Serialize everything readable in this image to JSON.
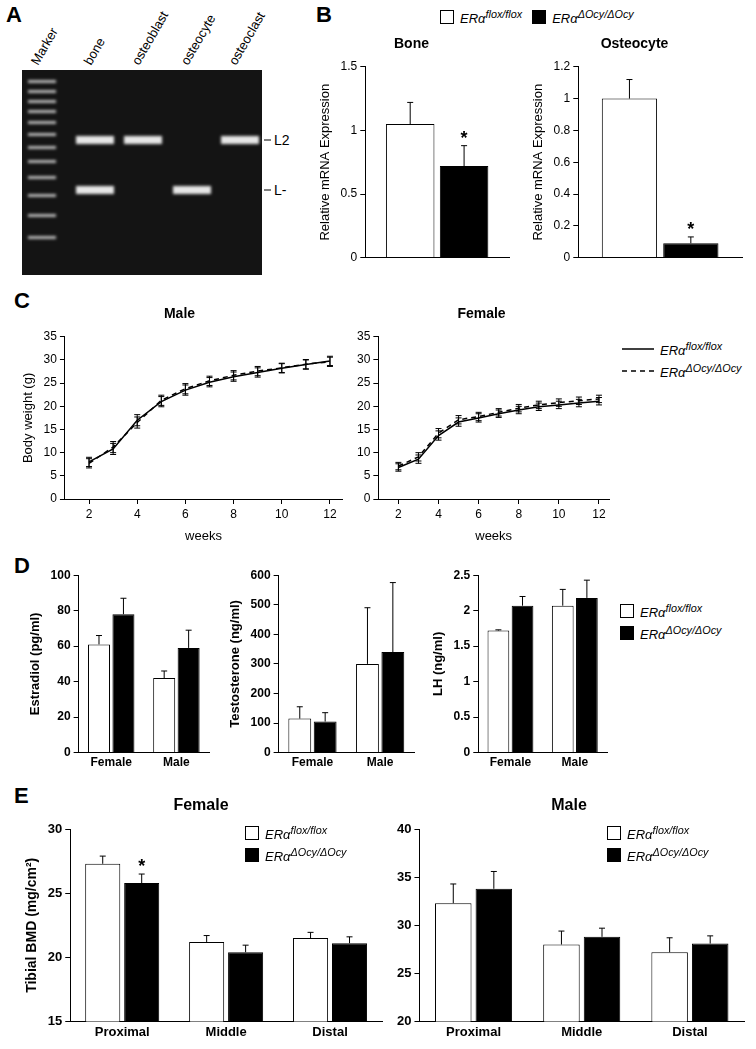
{
  "gel": {
    "panel": "A",
    "lanes": [
      {
        "label": "Marker",
        "ladder": true
      },
      {
        "label": "bone",
        "bands": [
          "L2",
          "L-"
        ]
      },
      {
        "label": "osteoblast",
        "bands": [
          "L2"
        ]
      },
      {
        "label": "osteocyte",
        "bands": [
          "L-"
        ]
      },
      {
        "label": "osteoclast",
        "bands": [
          "L2"
        ]
      }
    ],
    "band_labels": [
      "L2",
      "L-"
    ]
  },
  "chart_data": [
    {
      "panel": "B",
      "type": "bar",
      "title": "Bone",
      "y_label": "Relative mRNA Expression",
      "categories": [
        null
      ],
      "series": [
        {
          "name": "ERαflox/flox",
          "color": "#ffffff",
          "values": [
            1.05
          ],
          "errors": [
            0.17
          ]
        },
        {
          "name": "ERαΔOcy/ΔOcy",
          "color": "#000000",
          "values": [
            0.72
          ],
          "errors": [
            0.16
          ],
          "annotations": [
            "*"
          ]
        }
      ],
      "ylim": [
        0,
        1.5
      ],
      "yticks": [
        0,
        0.5,
        1,
        1.5
      ],
      "grid": false,
      "legend": "top"
    },
    {
      "panel": "B",
      "type": "bar",
      "title": "Osteocyte",
      "y_label": "Relative mRNA Expression",
      "categories": [
        null
      ],
      "series": [
        {
          "name": "ERαflox/flox",
          "color": "#ffffff",
          "values": [
            1.0
          ],
          "errors": [
            0.12
          ]
        },
        {
          "name": "ERαΔOcy/ΔOcy",
          "color": "#000000",
          "values": [
            0.09
          ],
          "errors": [
            0.04
          ],
          "annotations": [
            "*"
          ]
        }
      ],
      "ylim": [
        0,
        1.2
      ],
      "yticks": [
        0,
        0.2,
        0.4,
        0.6,
        0.8,
        1,
        1.2
      ],
      "grid": false
    },
    {
      "panel": "C",
      "type": "line",
      "title": "Male",
      "x_label": "weeks",
      "y_label": "Body weight (g)",
      "x": [
        2,
        3,
        4,
        5,
        6,
        7,
        8,
        9,
        10,
        11,
        12
      ],
      "series": [
        {
          "name": "ERαflox/flox",
          "color": "#000000",
          "line_style": "solid",
          "marker": "none",
          "values": [
            8,
            10.8,
            17,
            21,
            23.5,
            25.2,
            26.4,
            27.3,
            28.2,
            29,
            29.8
          ],
          "errors": [
            1,
            1.2,
            1.2,
            1.1,
            1.1,
            1,
            1,
            1,
            1,
            1,
            1
          ]
        },
        {
          "name": "ERαΔOcy/ΔOcy",
          "color": "#000000",
          "line_style": "dashed",
          "marker": "none",
          "values": [
            7.7,
            11.2,
            16.5,
            21.3,
            23.8,
            25.5,
            26.7,
            27.6,
            28.3,
            29.1,
            29.6
          ],
          "errors": [
            1,
            1.2,
            1.2,
            1.1,
            1.1,
            1,
            1,
            1,
            1,
            1,
            1
          ]
        }
      ],
      "xlim": [
        1,
        12.5
      ],
      "xticks": [
        2,
        4,
        6,
        8,
        10,
        12
      ],
      "ylim": [
        0,
        35
      ],
      "yticks": [
        0,
        5,
        10,
        15,
        20,
        25,
        30,
        35
      ],
      "grid": false
    },
    {
      "panel": "C",
      "type": "line",
      "title": "Female",
      "x_label": "weeks",
      "x": [
        2,
        3,
        4,
        5,
        6,
        7,
        8,
        9,
        10,
        11,
        12
      ],
      "series": [
        {
          "name": "ERαflox/flox",
          "color": "#000000",
          "line_style": "solid",
          "marker": "none",
          "values": [
            6.8,
            8.6,
            13.7,
            16.6,
            17.5,
            18.4,
            19.2,
            19.9,
            20.3,
            20.7,
            21.1
          ],
          "errors": [
            0.8,
            0.9,
            1,
            0.9,
            0.9,
            0.8,
            0.8,
            0.8,
            0.8,
            0.8,
            0.8
          ]
        },
        {
          "name": "ERαΔOcy/ΔOcy",
          "color": "#000000",
          "line_style": "dashed",
          "marker": "none",
          "values": [
            7.1,
            9.1,
            14.2,
            17.1,
            17.8,
            18.7,
            19.6,
            20.3,
            20.8,
            21.2,
            21.6
          ],
          "errors": [
            0.8,
            0.9,
            1,
            0.9,
            0.9,
            0.8,
            0.8,
            0.8,
            0.8,
            0.8,
            0.8
          ]
        }
      ],
      "xlim": [
        1,
        12.5
      ],
      "xticks": [
        2,
        4,
        6,
        8,
        10,
        12
      ],
      "ylim": [
        0,
        35
      ],
      "yticks": [
        0,
        5,
        10,
        15,
        20,
        25,
        30,
        35
      ],
      "grid": false,
      "legend": "right"
    },
    {
      "panel": "D",
      "type": "bar",
      "y_label": "Estradiol (pg/ml)",
      "categories": [
        "Female",
        "Male"
      ],
      "series": [
        {
          "name": "ERαflox/flox",
          "color": "#ffffff",
          "values": [
            61,
            42
          ],
          "errors": [
            5,
            4
          ]
        },
        {
          "name": "ERαΔOcy/ΔOcy",
          "color": "#000000",
          "values": [
            78,
            59
          ],
          "errors": [
            9,
            10
          ]
        }
      ],
      "ylim": [
        0,
        100
      ],
      "yticks": [
        0,
        20,
        40,
        60,
        80,
        100
      ],
      "grid": false
    },
    {
      "panel": "D",
      "type": "bar",
      "y_label": "Testosterone (ng/ml)",
      "categories": [
        "Female",
        "Male"
      ],
      "series": [
        {
          "name": "ERαflox/flox",
          "color": "#ffffff",
          "values": [
            115,
            300
          ],
          "errors": [
            40,
            190
          ]
        },
        {
          "name": "ERαΔOcy/ΔOcy",
          "color": "#000000",
          "values": [
            105,
            340
          ],
          "errors": [
            30,
            235
          ]
        }
      ],
      "ylim": [
        0,
        600
      ],
      "yticks": [
        0,
        100,
        200,
        300,
        400,
        500,
        600
      ],
      "grid": false
    },
    {
      "panel": "D",
      "type": "bar",
      "y_label": "LH (ng/ml)",
      "categories": [
        "Female",
        "Male"
      ],
      "series": [
        {
          "name": "ERαflox/flox",
          "color": "#ffffff",
          "values": [
            1.72,
            2.07
          ],
          "errors": [
            0.01,
            0.23
          ]
        },
        {
          "name": "ERαΔOcy/ΔOcy",
          "color": "#000000",
          "values": [
            2.07,
            2.18
          ],
          "errors": [
            0.13,
            0.25
          ]
        }
      ],
      "ylim": [
        0,
        2.5
      ],
      "yticks": [
        0,
        0.5,
        1,
        1.5,
        2,
        2.5
      ],
      "grid": false,
      "legend": "right"
    },
    {
      "panel": "E",
      "type": "bar",
      "title": "Female",
      "y_label": "Tibial BMD (mg/cm²)",
      "categories": [
        "Proximal",
        "Middle",
        "Distal"
      ],
      "series": [
        {
          "name": "ERαflox/flox",
          "color": "#ffffff",
          "values": [
            27.3,
            21.2,
            21.5
          ],
          "errors": [
            0.6,
            0.5,
            0.45
          ]
        },
        {
          "name": "ERαΔOcy/ΔOcy",
          "color": "#000000",
          "values": [
            25.8,
            20.4,
            21.1
          ],
          "errors": [
            0.7,
            0.55,
            0.5
          ],
          "annotations": [
            "*",
            null,
            null
          ]
        }
      ],
      "ylim": [
        15,
        30
      ],
      "yticks": [
        15,
        20,
        25,
        30
      ],
      "grid": false,
      "legend": "upper right"
    },
    {
      "panel": "E",
      "type": "bar",
      "title": "Male",
      "categories": [
        "Proximal",
        "Middle",
        "Distal"
      ],
      "series": [
        {
          "name": "ERαflox/flox",
          "color": "#ffffff",
          "values": [
            32.3,
            28,
            27.2
          ],
          "errors": [
            2,
            1.4,
            1.5
          ]
        },
        {
          "name": "ERαΔOcy/ΔOcy",
          "color": "#000000",
          "values": [
            33.8,
            28.8,
            28.1
          ],
          "errors": [
            1.8,
            0.9,
            0.8
          ]
        }
      ],
      "ylim": [
        20,
        40
      ],
      "yticks": [
        20,
        25,
        30,
        35,
        40
      ],
      "grid": false,
      "legend": "upper right"
    }
  ]
}
